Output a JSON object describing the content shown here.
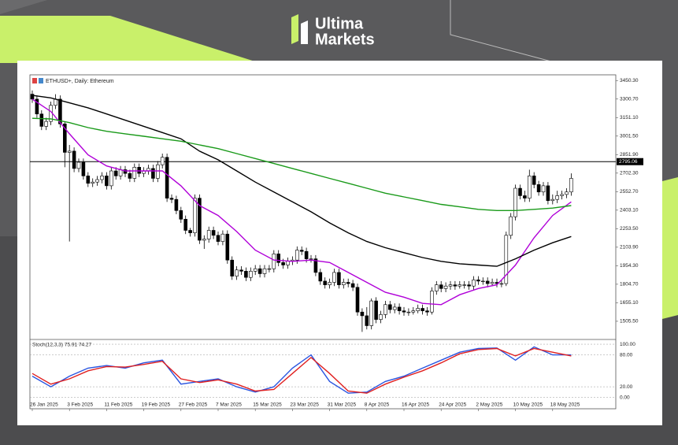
{
  "brand": {
    "line1": "Ultima",
    "line2": "Markets"
  },
  "chart_data": {
    "type": "candlestick",
    "title": "ETHUSD+, Daily: Ethereum",
    "up_color": "#ffffff",
    "down_color": "#000000",
    "ylim": [
      1365,
      3490
    ],
    "yticks": [
      {
        "value": 3450.3,
        "label": "3450.30"
      },
      {
        "value": 3300.7,
        "label": "3300.70"
      },
      {
        "value": 3151.1,
        "label": "3151.10"
      },
      {
        "value": 3001.5,
        "label": "3001.50"
      },
      {
        "value": 2851.9,
        "label": "2851.90"
      },
      {
        "value": 2702.3,
        "label": "2702.30"
      },
      {
        "value": 2552.7,
        "label": "2552.70"
      },
      {
        "value": 2403.1,
        "label": "2403.10"
      },
      {
        "value": 2253.5,
        "label": "2253.50"
      },
      {
        "value": 2103.9,
        "label": "2103.90"
      },
      {
        "value": 1954.3,
        "label": "1954.30"
      },
      {
        "value": 1804.7,
        "label": "1804.70"
      },
      {
        "value": 1655.1,
        "label": "1655.10"
      },
      {
        "value": 1505.5,
        "label": "1505.50"
      }
    ],
    "level": 2795.06,
    "level_color": "#000000",
    "categories": [
      "26 Jan 2025",
      null,
      null,
      null,
      null,
      null,
      null,
      null,
      "3 Feb 2025",
      null,
      null,
      null,
      null,
      null,
      null,
      null,
      "11 Feb 2025",
      null,
      null,
      null,
      null,
      null,
      null,
      null,
      "19 Feb 2025",
      null,
      null,
      null,
      null,
      null,
      null,
      null,
      "27 Feb 2025",
      null,
      null,
      null,
      null,
      null,
      null,
      null,
      "7 Mar 2025",
      null,
      null,
      null,
      null,
      null,
      null,
      null,
      "15 Mar 2025",
      null,
      null,
      null,
      null,
      null,
      null,
      null,
      "23 Mar 2025",
      null,
      null,
      null,
      null,
      null,
      null,
      null,
      "31 Mar 2025",
      null,
      null,
      null,
      null,
      null,
      null,
      null,
      "8 Apr 2025",
      null,
      null,
      null,
      null,
      null,
      null,
      null,
      "16 Apr 2025",
      null,
      null,
      null,
      null,
      null,
      null,
      null,
      "24 Apr 2025",
      null,
      null,
      null,
      null,
      null,
      null,
      null,
      "2 May 2025",
      null,
      null,
      null,
      null,
      null,
      null,
      null,
      "10 May 2025",
      null,
      null,
      null,
      null,
      null,
      null,
      null,
      "18 May 2025",
      null,
      null,
      null,
      null
    ],
    "candles": [
      [
        3340,
        3370,
        3270,
        3300
      ],
      [
        3300,
        3330,
        3150,
        3180
      ],
      [
        3180,
        3210,
        3050,
        3080
      ],
      [
        3080,
        3150,
        3050,
        3120
      ],
      [
        3120,
        3280,
        3090,
        3250
      ],
      [
        3250,
        3340,
        3220,
        3300
      ],
      [
        3300,
        3330,
        3070,
        3100
      ],
      [
        3100,
        3120,
        2750,
        2870
      ],
      [
        2870,
        2930,
        2150,
        2880
      ],
      [
        2880,
        2910,
        2710,
        2740
      ],
      [
        2740,
        2820,
        2710,
        2790
      ],
      [
        2790,
        2820,
        2650,
        2680
      ],
      [
        2680,
        2710,
        2590,
        2620
      ],
      [
        2620,
        2660,
        2590,
        2630
      ],
      [
        2630,
        2680,
        2600,
        2650
      ],
      [
        2650,
        2710,
        2620,
        2680
      ],
      [
        2680,
        2710,
        2570,
        2600
      ],
      [
        2600,
        2750,
        2570,
        2720
      ],
      [
        2720,
        2750,
        2650,
        2680
      ],
      [
        2680,
        2760,
        2650,
        2730
      ],
      [
        2730,
        2760,
        2670,
        2700
      ],
      [
        2700,
        2730,
        2630,
        2660
      ],
      [
        2660,
        2780,
        2630,
        2750
      ],
      [
        2750,
        2780,
        2670,
        2700
      ],
      [
        2700,
        2750,
        2670,
        2720
      ],
      [
        2720,
        2770,
        2690,
        2740
      ],
      [
        2740,
        2770,
        2630,
        2660
      ],
      [
        2660,
        2800,
        2630,
        2770
      ],
      [
        2770,
        2860,
        2740,
        2830
      ],
      [
        2830,
        2860,
        2470,
        2500
      ],
      [
        2500,
        2530,
        2460,
        2490
      ],
      [
        2490,
        2520,
        2370,
        2400
      ],
      [
        2400,
        2430,
        2300,
        2330
      ],
      [
        2330,
        2360,
        2210,
        2240
      ],
      [
        2240,
        2260,
        2190,
        2220
      ],
      [
        2220,
        2530,
        2190,
        2500
      ],
      [
        2500,
        2530,
        2130,
        2160
      ],
      [
        2160,
        2200,
        2090,
        2170
      ],
      [
        2170,
        2270,
        2140,
        2240
      ],
      [
        2240,
        2270,
        2170,
        2200
      ],
      [
        2200,
        2230,
        2120,
        2150
      ],
      [
        2150,
        2240,
        2120,
        2210
      ],
      [
        2210,
        2240,
        1970,
        2000
      ],
      [
        2000,
        2030,
        1840,
        1870
      ],
      [
        1870,
        1950,
        1840,
        1920
      ],
      [
        1920,
        1950,
        1880,
        1910
      ],
      [
        1910,
        1940,
        1830,
        1860
      ],
      [
        1860,
        1940,
        1830,
        1910
      ],
      [
        1910,
        1960,
        1880,
        1930
      ],
      [
        1930,
        1960,
        1860,
        1890
      ],
      [
        1890,
        1960,
        1860,
        1930
      ],
      [
        1930,
        1960,
        1900,
        1930
      ],
      [
        1930,
        2080,
        1900,
        2050
      ],
      [
        2050,
        2080,
        1950,
        1980
      ],
      [
        1980,
        2010,
        1930,
        1960
      ],
      [
        1960,
        2020,
        1930,
        1990
      ],
      [
        1990,
        2030,
        1960,
        2000
      ],
      [
        2000,
        2110,
        1970,
        2080
      ],
      [
        2080,
        2110,
        2040,
        2070
      ],
      [
        2070,
        2100,
        1980,
        2010
      ],
      [
        2010,
        2040,
        1980,
        2010
      ],
      [
        2010,
        2040,
        1870,
        1900
      ],
      [
        1900,
        1930,
        1800,
        1830
      ],
      [
        1830,
        1860,
        1770,
        1800
      ],
      [
        1800,
        1850,
        1770,
        1820
      ],
      [
        1820,
        1930,
        1790,
        1900
      ],
      [
        1900,
        1930,
        1770,
        1800
      ],
      [
        1800,
        1850,
        1770,
        1820
      ],
      [
        1820,
        1850,
        1780,
        1810
      ],
      [
        1810,
        1840,
        1750,
        1780
      ],
      [
        1780,
        1810,
        1550,
        1580
      ],
      [
        1580,
        1610,
        1420,
        1550
      ],
      [
        1550,
        1620,
        1440,
        1470
      ],
      [
        1470,
        1690,
        1440,
        1670
      ],
      [
        1670,
        1700,
        1490,
        1520
      ],
      [
        1520,
        1590,
        1490,
        1560
      ],
      [
        1560,
        1670,
        1530,
        1640
      ],
      [
        1640,
        1670,
        1570,
        1600
      ],
      [
        1600,
        1650,
        1570,
        1620
      ],
      [
        1620,
        1650,
        1560,
        1590
      ],
      [
        1590,
        1620,
        1550,
        1580
      ],
      [
        1580,
        1610,
        1550,
        1580
      ],
      [
        1580,
        1620,
        1560,
        1590
      ],
      [
        1590,
        1640,
        1570,
        1610
      ],
      [
        1610,
        1640,
        1560,
        1590
      ],
      [
        1590,
        1620,
        1550,
        1580
      ],
      [
        1580,
        1780,
        1560,
        1750
      ],
      [
        1750,
        1830,
        1720,
        1800
      ],
      [
        1800,
        1830,
        1740,
        1770
      ],
      [
        1770,
        1820,
        1740,
        1790
      ],
      [
        1790,
        1830,
        1760,
        1800
      ],
      [
        1800,
        1830,
        1760,
        1790
      ],
      [
        1790,
        1830,
        1770,
        1800
      ],
      [
        1800,
        1830,
        1770,
        1800
      ],
      [
        1800,
        1830,
        1760,
        1790
      ],
      [
        1790,
        1870,
        1760,
        1840
      ],
      [
        1840,
        1870,
        1800,
        1830
      ],
      [
        1830,
        1860,
        1800,
        1830
      ],
      [
        1830,
        1860,
        1780,
        1810
      ],
      [
        1810,
        1850,
        1790,
        1820
      ],
      [
        1820,
        1850,
        1780,
        1810
      ],
      [
        1810,
        1840,
        1780,
        1810
      ],
      [
        1810,
        2230,
        1790,
        2200
      ],
      [
        2200,
        2380,
        2170,
        2350
      ],
      [
        2350,
        2610,
        2320,
        2580
      ],
      [
        2580,
        2610,
        2490,
        2520
      ],
      [
        2520,
        2560,
        2470,
        2500
      ],
      [
        2500,
        2730,
        2470,
        2680
      ],
      [
        2680,
        2710,
        2580,
        2610
      ],
      [
        2610,
        2640,
        2520,
        2550
      ],
      [
        2550,
        2630,
        2520,
        2600
      ],
      [
        2600,
        2630,
        2450,
        2480
      ],
      [
        2480,
        2530,
        2450,
        2490
      ],
      [
        2490,
        2560,
        2460,
        2520
      ],
      [
        2520,
        2560,
        2490,
        2530
      ],
      [
        2530,
        2580,
        2500,
        2550
      ],
      [
        2550,
        2700,
        2520,
        2660
      ]
    ],
    "ma": [
      {
        "color": "#b000d8",
        "x": [
          0,
          4,
          8,
          12,
          16,
          20,
          24,
          28,
          32,
          36,
          40,
          44,
          48,
          52,
          56,
          60,
          64,
          68,
          72,
          76,
          80,
          84,
          88,
          92,
          96,
          100,
          104,
          108,
          112,
          116
        ],
        "values": [
          3300,
          3200,
          3020,
          2850,
          2760,
          2720,
          2720,
          2720,
          2600,
          2440,
          2360,
          2230,
          2080,
          2000,
          1990,
          2000,
          1980,
          1900,
          1820,
          1740,
          1700,
          1650,
          1640,
          1720,
          1770,
          1800,
          1960,
          2180,
          2360,
          2470
        ]
      },
      {
        "color": "#000000",
        "x": [
          0,
          4,
          8,
          12,
          16,
          20,
          24,
          28,
          32,
          36,
          40,
          44,
          48,
          52,
          56,
          60,
          64,
          68,
          72,
          76,
          80,
          84,
          88,
          92,
          96,
          100,
          104,
          108,
          112,
          116
        ],
        "values": [
          3330,
          3310,
          3270,
          3230,
          3180,
          3130,
          3080,
          3030,
          2980,
          2880,
          2810,
          2720,
          2630,
          2550,
          2470,
          2390,
          2300,
          2220,
          2150,
          2100,
          2060,
          2020,
          1990,
          1970,
          1960,
          1950,
          2010,
          2080,
          2140,
          2190
        ]
      },
      {
        "color": "#1a9a1a",
        "x": [
          0,
          4,
          8,
          12,
          16,
          20,
          24,
          28,
          32,
          36,
          40,
          44,
          48,
          52,
          56,
          60,
          64,
          68,
          72,
          76,
          80,
          84,
          88,
          92,
          96,
          100,
          104,
          108,
          112,
          116
        ],
        "values": [
          3145,
          3140,
          3110,
          3070,
          3040,
          3020,
          3000,
          2980,
          2960,
          2930,
          2900,
          2860,
          2820,
          2780,
          2740,
          2700,
          2660,
          2620,
          2580,
          2540,
          2510,
          2480,
          2450,
          2430,
          2410,
          2400,
          2400,
          2410,
          2420,
          2440
        ]
      }
    ],
    "stoch": {
      "title": "Stoch(12,3,3) 75.91 74.27",
      "ylim": [
        -8,
        106
      ],
      "yticks": [
        {
          "value": 100,
          "label": "100.00"
        },
        {
          "value": 80,
          "label": "80.00"
        },
        {
          "value": 20,
          "label": "20.00"
        },
        {
          "value": 0,
          "label": "0.00"
        }
      ],
      "series": [
        {
          "color": "#2a55e0",
          "x": [
            0,
            4,
            8,
            12,
            16,
            20,
            24,
            28,
            32,
            36,
            40,
            44,
            48,
            52,
            56,
            60,
            64,
            68,
            72,
            76,
            80,
            84,
            88,
            92,
            96,
            100,
            104,
            108,
            112,
            116
          ],
          "values": [
            40,
            20,
            40,
            55,
            60,
            55,
            65,
            70,
            25,
            30,
            35,
            20,
            10,
            20,
            55,
            80,
            30,
            8,
            10,
            30,
            40,
            55,
            70,
            85,
            92,
            93,
            70,
            95,
            80,
            80
          ]
        },
        {
          "color": "#e02020",
          "x": [
            0,
            4,
            8,
            12,
            16,
            20,
            24,
            28,
            32,
            36,
            40,
            44,
            48,
            52,
            56,
            60,
            64,
            68,
            72,
            76,
            80,
            84,
            88,
            92,
            96,
            100,
            104,
            108,
            112,
            116
          ],
          "values": [
            45,
            25,
            35,
            50,
            58,
            57,
            62,
            68,
            35,
            28,
            33,
            25,
            12,
            15,
            45,
            75,
            45,
            12,
            8,
            25,
            38,
            50,
            65,
            82,
            90,
            92,
            78,
            92,
            85,
            78
          ]
        }
      ]
    }
  }
}
